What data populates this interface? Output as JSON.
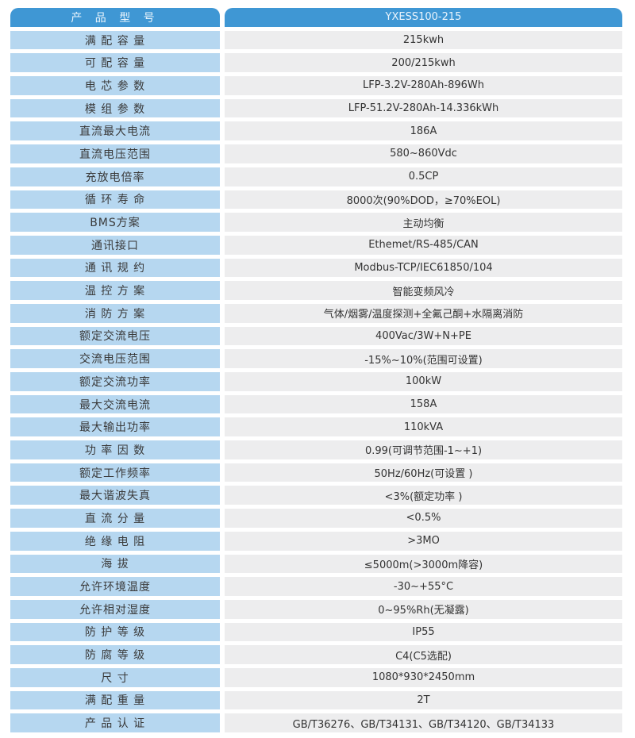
{
  "colors": {
    "header_bg": "#3f97d4",
    "header_text": "#eaf4fc",
    "label_bg": "#b6d7f0",
    "value_bg": "#ededee",
    "text": "#333333"
  },
  "header": {
    "label": "产 品 型 号",
    "value": "YXESS100-215"
  },
  "rows": [
    {
      "label": "满 配 容 量",
      "value": "215kwh"
    },
    {
      "label": "可 配 容 量",
      "value": "200/215kwh"
    },
    {
      "label": "电 芯 参 数",
      "value": "LFP-3.2V-280Ah-896Wh"
    },
    {
      "label": "模 组 参 数",
      "value": "LFP-51.2V-280Ah-14.336kWh"
    },
    {
      "label": "直流最大电流",
      "value": "186A"
    },
    {
      "label": "直流电压范围",
      "value": "580~860Vdc"
    },
    {
      "label": "充放电倍率",
      "value": "0.5CP"
    },
    {
      "label": "循 环 寿 命",
      "value": "8000次(90%DOD，≥70%EOL)"
    },
    {
      "label": "BMS方案",
      "value": "主动均衡"
    },
    {
      "label": "通讯接口",
      "value": "Ethemet/RS-485/CAN"
    },
    {
      "label": "通 讯 规 约",
      "value": "Modbus-TCP/IEC61850/104"
    },
    {
      "label": "温 控 方 案",
      "value": "智能变频风冷"
    },
    {
      "label": "消 防 方 案",
      "value": "气体/烟雾/温度探测+全氟己酮+水隔离消防"
    },
    {
      "label": "额定交流电压",
      "value": "400Vac/3W+N+PE"
    },
    {
      "label": "交流电压范围",
      "value": "-15%~10%(范围可设置)"
    },
    {
      "label": "额定交流功率",
      "value": "100kW"
    },
    {
      "label": "最大交流电流",
      "value": "158A"
    },
    {
      "label": "最大输出功率",
      "value": "110kVA"
    },
    {
      "label": "功 率 因 数",
      "value": "0.99(可调节范围-1~+1)"
    },
    {
      "label": "额定工作频率",
      "value": "50Hz/60Hz(可设置 )"
    },
    {
      "label": "最大谐波失真",
      "value": "<3%(额定功率 )"
    },
    {
      "label": "直 流 分 量",
      "value": "<0.5%"
    },
    {
      "label": "绝 缘 电 阻",
      "value": ">3MO"
    },
    {
      "label": "海 拔",
      "value": "≤5000m(>3000m降容)"
    },
    {
      "label": "允许环境温度",
      "value": "-30~+55°C"
    },
    {
      "label": "允许相对湿度",
      "value": "0~95%Rh(无凝露)"
    },
    {
      "label": "防 护 等 级",
      "value": "IP55"
    },
    {
      "label": "防 腐 等 级",
      "value": "C4(C5选配)"
    },
    {
      "label": "尺 寸",
      "value": "1080*930*2450mm"
    },
    {
      "label": "满 配 重 量",
      "value": "2T"
    },
    {
      "label": "产 品 认 证",
      "value": "GB/T36276、GB/T34131、GB/T34120、GB/T34133"
    }
  ]
}
